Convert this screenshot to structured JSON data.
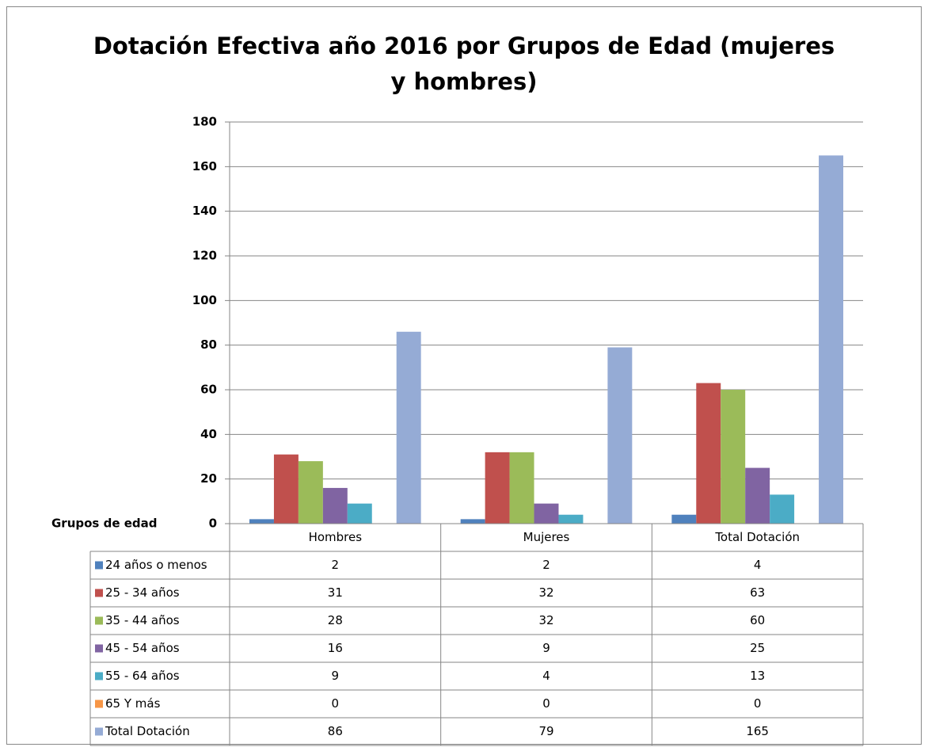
{
  "chart_data": {
    "type": "bar",
    "title": "Dotación Efectiva año 2016 por Grupos de Edad (mujeres y hombres)",
    "table_label": "Grupos de edad",
    "categories": [
      "Hombres",
      "Mujeres",
      "Total Dotación"
    ],
    "series": [
      {
        "name": "24 años o menos",
        "color": "#4f81bd",
        "values": [
          2,
          2,
          4
        ]
      },
      {
        "name": "25 - 34 años",
        "color": "#c0504d",
        "values": [
          31,
          32,
          63
        ]
      },
      {
        "name": "35 - 44 años",
        "color": "#9bbb59",
        "values": [
          28,
          32,
          60
        ]
      },
      {
        "name": "45 - 54 años",
        "color": "#8064a2",
        "values": [
          16,
          9,
          25
        ]
      },
      {
        "name": "55 - 64 años",
        "color": "#4bacc6",
        "values": [
          9,
          4,
          13
        ]
      },
      {
        "name": "65 Y más",
        "color": "#f79646",
        "values": [
          0,
          0,
          0
        ]
      },
      {
        "name": "Total Dotación",
        "color": "#95abd5",
        "values": [
          86,
          79,
          165
        ]
      }
    ],
    "ylim": [
      0,
      180
    ],
    "yticks": [
      0,
      20,
      40,
      60,
      80,
      100,
      120,
      140,
      160,
      180
    ],
    "grid": true
  }
}
